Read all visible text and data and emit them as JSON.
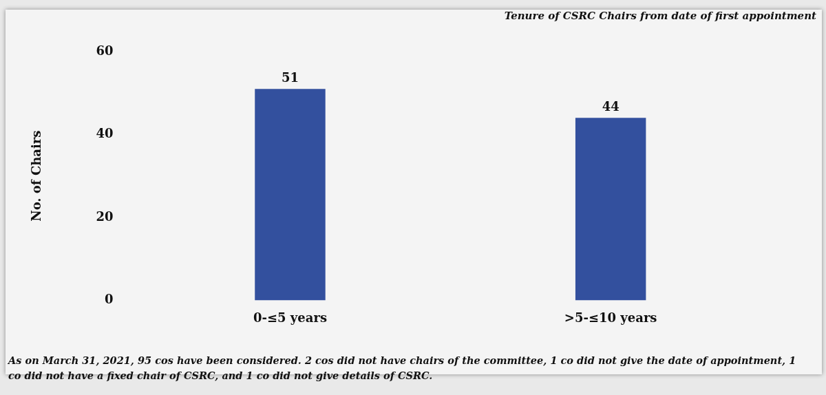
{
  "chart_data": {
    "type": "bar",
    "title": "Tenure of CSRC Chairs from date of first appointment",
    "ylabel": "No. of Chairs",
    "categories": [
      "0-≤5 years",
      ">5-≤10 years"
    ],
    "values": [
      51,
      44
    ],
    "color": "#33509e",
    "ylim": [
      0,
      60
    ],
    "yticks": [
      0,
      20,
      40,
      60
    ],
    "grid": false,
    "legend": false,
    "data_labels": true,
    "annotations": [
      "As on March 31, 2021, 95 cos have been considered.  2 cos did not have chairs of the committee, 1 co did not give the date of appointment, 1 co did not have a fixed chair of CSRC, and 1 co did not give details of CSRC."
    ]
  }
}
